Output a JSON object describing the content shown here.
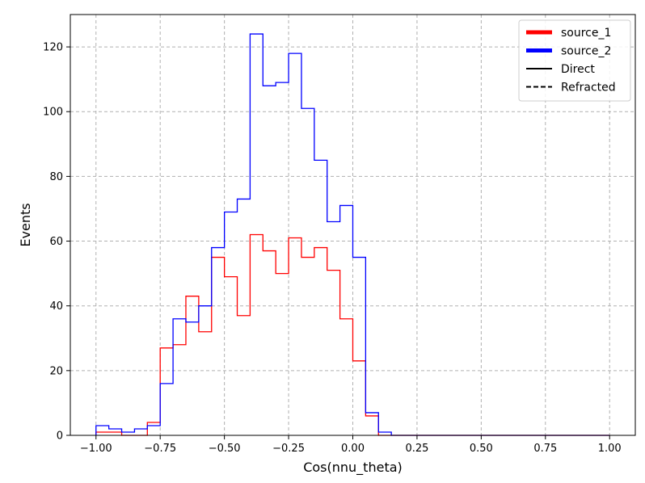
{
  "chart_data": {
    "type": "step-histogram",
    "title": "",
    "xlabel": "Cos(nnu_theta)",
    "ylabel": "Events",
    "xlim": [
      -1.1,
      1.1
    ],
    "ylim": [
      0,
      130
    ],
    "grid": true,
    "grid_style": "dashed",
    "x_ticks": [
      -1.0,
      -0.75,
      -0.5,
      -0.25,
      0.0,
      0.25,
      0.5,
      0.75,
      1.0
    ],
    "x_tick_labels": [
      "−1.00",
      "−0.75",
      "−0.50",
      "−0.25",
      "0.00",
      "0.25",
      "0.50",
      "0.75",
      "1.00"
    ],
    "y_ticks": [
      0,
      20,
      40,
      60,
      80,
      100,
      120
    ],
    "y_tick_labels": [
      "0",
      "20",
      "40",
      "60",
      "80",
      "100",
      "120"
    ],
    "bin_edges": [
      -1.0,
      -0.95,
      -0.9,
      -0.85,
      -0.8,
      -0.75,
      -0.7,
      -0.65,
      -0.6,
      -0.55,
      -0.5,
      -0.45,
      -0.4,
      -0.35,
      -0.3,
      -0.25,
      -0.2,
      -0.15,
      -0.1,
      -0.05,
      0.0,
      0.05,
      0.1,
      0.15,
      0.2,
      0.25,
      0.3,
      0.35,
      0.4,
      0.45,
      0.5,
      0.55,
      0.6,
      0.65,
      0.7,
      0.75,
      0.8,
      0.85,
      0.9,
      0.95,
      1.0
    ],
    "series": [
      {
        "name": "source_1",
        "color": "#ff0000",
        "values": [
          1,
          1,
          0,
          0,
          4,
          27,
          28,
          43,
          32,
          55,
          49,
          37,
          62,
          57,
          50,
          61,
          55,
          58,
          51,
          36,
          23,
          6,
          0,
          0,
          0,
          0,
          0,
          0,
          0,
          0,
          0,
          0,
          0,
          0,
          0,
          0,
          0,
          0,
          0,
          0
        ]
      },
      {
        "name": "source_2",
        "color": "#0000ff",
        "values": [
          3,
          2,
          1,
          2,
          3,
          16,
          36,
          35,
          40,
          58,
          69,
          73,
          124,
          108,
          109,
          118,
          101,
          85,
          66,
          71,
          55,
          7,
          1,
          0,
          0,
          0,
          0,
          0,
          0,
          0,
          0,
          0,
          0,
          0,
          0,
          0,
          0,
          0,
          0,
          0
        ]
      }
    ],
    "legend": {
      "position": "top-right",
      "entries": [
        {
          "label": "source_1",
          "color": "#ff0000",
          "style": "solid-thick"
        },
        {
          "label": "source_2",
          "color": "#0000ff",
          "style": "solid-thick"
        },
        {
          "label": "Direct",
          "color": "#000000",
          "style": "solid"
        },
        {
          "label": "Refracted",
          "color": "#000000",
          "style": "dashed"
        }
      ]
    }
  }
}
